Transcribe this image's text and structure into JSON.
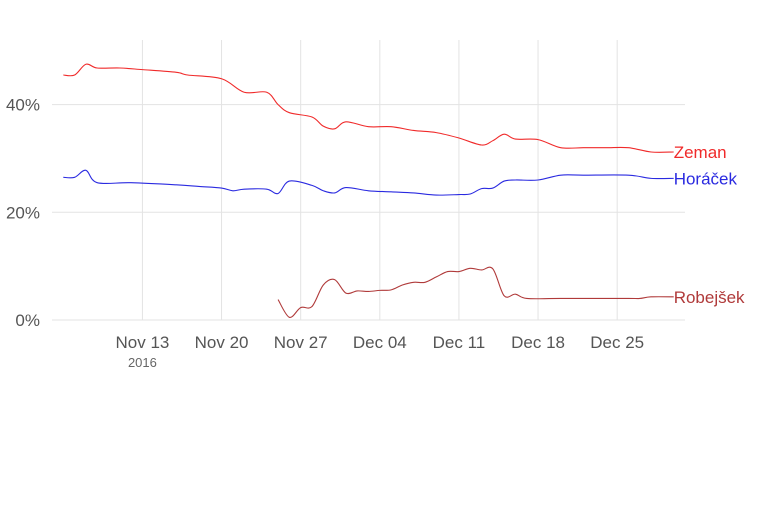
{
  "chart_data": {
    "type": "line",
    "title": "",
    "xlabel": "",
    "ylabel": "",
    "x_range": [
      "2016-11-05",
      "2016-12-31"
    ],
    "ylim": [
      0,
      52
    ],
    "y_ticks": [
      {
        "value": 0,
        "label": "0%"
      },
      {
        "value": 20,
        "label": "20%"
      },
      {
        "value": 40,
        "label": "40%"
      }
    ],
    "x_ticks": [
      {
        "date": "2016-11-13",
        "label": "Nov 13",
        "sublabel": "2016"
      },
      {
        "date": "2016-11-20",
        "label": "Nov 20",
        "sublabel": ""
      },
      {
        "date": "2016-11-27",
        "label": "Nov 27",
        "sublabel": ""
      },
      {
        "date": "2016-12-04",
        "label": "Dec 04",
        "sublabel": ""
      },
      {
        "date": "2016-12-11",
        "label": "Dec 11",
        "sublabel": ""
      },
      {
        "date": "2016-12-18",
        "label": "Dec 18",
        "sublabel": ""
      },
      {
        "date": "2016-12-25",
        "label": "Dec 25",
        "sublabel": ""
      }
    ],
    "grid": true,
    "legend": "direct labels at line ends (right)",
    "series": [
      {
        "name": "Zeman",
        "color": "#f02a2a",
        "points": [
          [
            "2016-11-06",
            45.5
          ],
          [
            "2016-11-07",
            45.5
          ],
          [
            "2016-11-08",
            47.5
          ],
          [
            "2016-11-09",
            46.8
          ],
          [
            "2016-11-11",
            46.8
          ],
          [
            "2016-11-13",
            46.5
          ],
          [
            "2016-11-16",
            46.0
          ],
          [
            "2016-11-17",
            45.5
          ],
          [
            "2016-11-20",
            44.8
          ],
          [
            "2016-11-22",
            42.3
          ],
          [
            "2016-11-24",
            42.3
          ],
          [
            "2016-11-25",
            40.0
          ],
          [
            "2016-11-26",
            38.5
          ],
          [
            "2016-11-28",
            37.7
          ],
          [
            "2016-11-29",
            36.0
          ],
          [
            "2016-11-30",
            35.5
          ],
          [
            "2016-12-01",
            36.8
          ],
          [
            "2016-12-03",
            35.9
          ],
          [
            "2016-12-05",
            35.9
          ],
          [
            "2016-12-07",
            35.2
          ],
          [
            "2016-12-09",
            34.8
          ],
          [
            "2016-12-11",
            33.8
          ],
          [
            "2016-12-13",
            32.5
          ],
          [
            "2016-12-14",
            33.3
          ],
          [
            "2016-12-15",
            34.5
          ],
          [
            "2016-12-16",
            33.6
          ],
          [
            "2016-12-18",
            33.5
          ],
          [
            "2016-12-20",
            32.0
          ],
          [
            "2016-12-22",
            32.0
          ],
          [
            "2016-12-24",
            32.0
          ],
          [
            "2016-12-26",
            32.0
          ],
          [
            "2016-12-28",
            31.2
          ],
          [
            "2016-12-30",
            31.2
          ]
        ]
      },
      {
        "name": "Horáček",
        "color": "#2a2ae0",
        "points": [
          [
            "2016-11-06",
            26.5
          ],
          [
            "2016-11-07",
            26.5
          ],
          [
            "2016-11-08",
            27.8
          ],
          [
            "2016-11-09",
            25.5
          ],
          [
            "2016-11-12",
            25.5
          ],
          [
            "2016-11-16",
            25.1
          ],
          [
            "2016-11-18",
            24.8
          ],
          [
            "2016-11-20",
            24.5
          ],
          [
            "2016-11-21",
            24.0
          ],
          [
            "2016-11-22",
            24.3
          ],
          [
            "2016-11-24",
            24.3
          ],
          [
            "2016-11-25",
            23.5
          ],
          [
            "2016-11-26",
            25.8
          ],
          [
            "2016-11-28",
            25.0
          ],
          [
            "2016-11-29",
            24.0
          ],
          [
            "2016-11-30",
            23.6
          ],
          [
            "2016-12-01",
            24.6
          ],
          [
            "2016-12-03",
            24.0
          ],
          [
            "2016-12-05",
            23.8
          ],
          [
            "2016-12-07",
            23.6
          ],
          [
            "2016-12-09",
            23.2
          ],
          [
            "2016-12-11",
            23.3
          ],
          [
            "2016-12-12",
            23.4
          ],
          [
            "2016-12-13",
            24.4
          ],
          [
            "2016-12-14",
            24.5
          ],
          [
            "2016-12-15",
            25.8
          ],
          [
            "2016-12-16",
            26.0
          ],
          [
            "2016-12-18",
            26.0
          ],
          [
            "2016-12-20",
            26.9
          ],
          [
            "2016-12-22",
            26.9
          ],
          [
            "2016-12-26",
            26.9
          ],
          [
            "2016-12-28",
            26.3
          ],
          [
            "2016-12-30",
            26.3
          ]
        ]
      },
      {
        "name": "Robejšek",
        "color": "#b03a3a",
        "points": [
          [
            "2016-11-25",
            3.8
          ],
          [
            "2016-11-26",
            0.5
          ],
          [
            "2016-11-27",
            2.3
          ],
          [
            "2016-11-28",
            2.5
          ],
          [
            "2016-11-29",
            6.5
          ],
          [
            "2016-11-30",
            7.5
          ],
          [
            "2016-12-01",
            5.0
          ],
          [
            "2016-12-02",
            5.4
          ],
          [
            "2016-12-03",
            5.3
          ],
          [
            "2016-12-04",
            5.5
          ],
          [
            "2016-12-05",
            5.6
          ],
          [
            "2016-12-06",
            6.5
          ],
          [
            "2016-12-07",
            7.0
          ],
          [
            "2016-12-08",
            7.0
          ],
          [
            "2016-12-09",
            8.0
          ],
          [
            "2016-12-10",
            9.0
          ],
          [
            "2016-12-11",
            9.0
          ],
          [
            "2016-12-12",
            9.6
          ],
          [
            "2016-12-13",
            9.3
          ],
          [
            "2016-12-14",
            9.5
          ],
          [
            "2016-12-15",
            4.5
          ],
          [
            "2016-12-16",
            4.8
          ],
          [
            "2016-12-17",
            4.0
          ],
          [
            "2016-12-20",
            4.0
          ],
          [
            "2016-12-26",
            4.0
          ],
          [
            "2016-12-27",
            4.0
          ],
          [
            "2016-12-28",
            4.3
          ],
          [
            "2016-12-30",
            4.3
          ]
        ]
      }
    ]
  }
}
